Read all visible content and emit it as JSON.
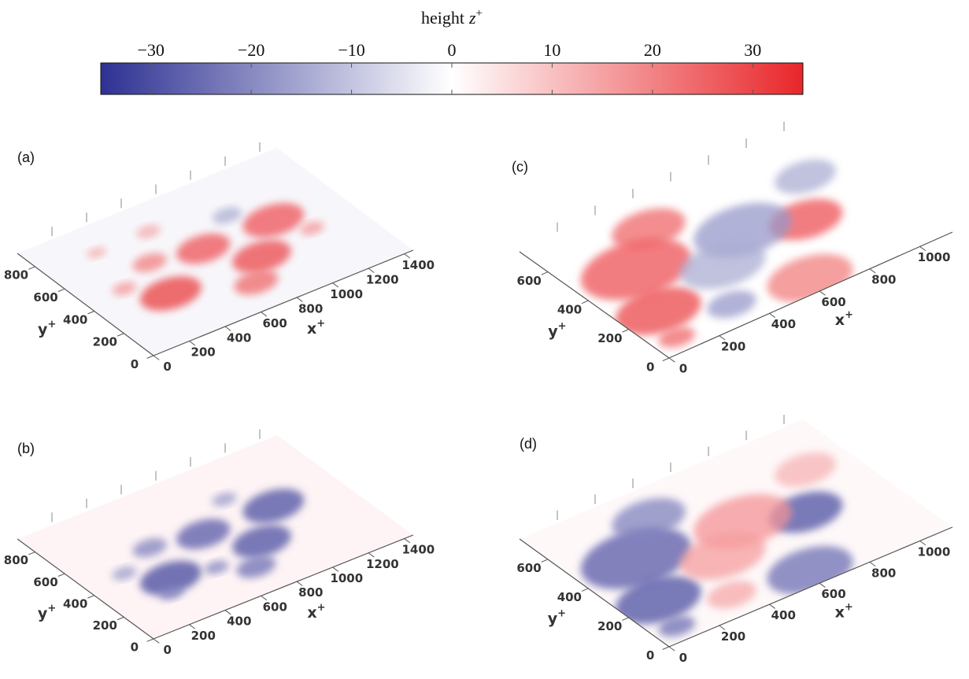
{
  "chart_data": [
    {
      "type": "colorbar",
      "title": "height",
      "title_symbol": "z",
      "title_superscript": "+",
      "xlim": [
        -35,
        35
      ],
      "xticks": [
        {
          "value": -30,
          "label": "−30"
        },
        {
          "value": -20,
          "label": "−20"
        },
        {
          "value": -10,
          "label": "−10"
        },
        0,
        10,
        20,
        30
      ],
      "colors": [
        "#2e3192",
        "#ffffff",
        "#e8262a"
      ]
    },
    {
      "type": "surface3d",
      "label": "(a)",
      "xlabel": "x",
      "ylabel": "y",
      "label_superscript": "+",
      "xlim": [
        0,
        1450
      ],
      "xticks": [
        0,
        200,
        400,
        600,
        800,
        1000,
        1200,
        1400
      ],
      "ylim": [
        0,
        920
      ],
      "yticks": [
        0,
        200,
        400,
        600,
        800
      ]
    },
    {
      "type": "surface3d",
      "label": "(b)",
      "xlabel": "x",
      "ylabel": "y",
      "label_superscript": "+",
      "xlim": [
        0,
        1450
      ],
      "xticks": [
        0,
        200,
        400,
        600,
        800,
        1000,
        1200,
        1400
      ],
      "ylim": [
        0,
        920
      ],
      "yticks": [
        0,
        200,
        400,
        600,
        800
      ]
    },
    {
      "type": "surface3d",
      "label": "(c)",
      "xlabel": "x",
      "ylabel": "y",
      "label_superscript": "+",
      "xlim": [
        0,
        1130
      ],
      "xticks": [
        0,
        200,
        400,
        600,
        800,
        1000
      ],
      "ylim": [
        0,
        740
      ],
      "yticks": [
        0,
        200,
        400,
        600
      ]
    },
    {
      "type": "surface3d",
      "label": "(d)",
      "xlabel": "x",
      "ylabel": "y",
      "label_superscript": "+",
      "xlim": [
        0,
        1130
      ],
      "xticks": [
        0,
        200,
        400,
        600,
        800,
        1000
      ],
      "ylim": [
        0,
        740
      ],
      "yticks": [
        0,
        200,
        400,
        600
      ]
    }
  ]
}
